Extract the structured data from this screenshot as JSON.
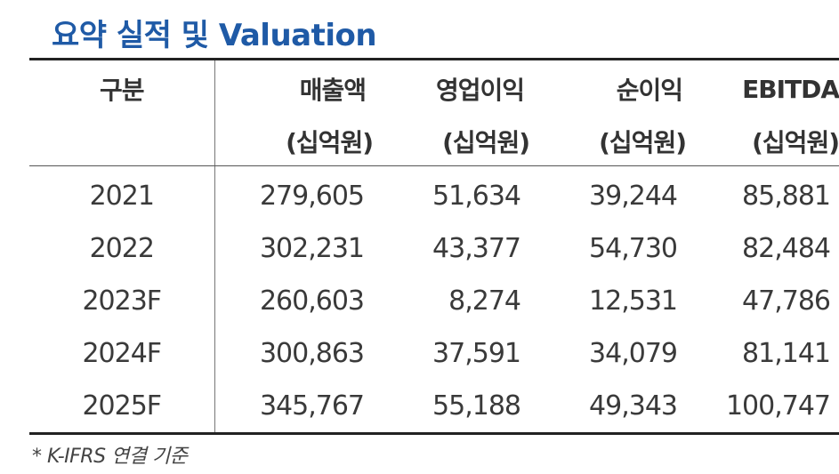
{
  "title": "요약 실적 및 Valuation",
  "table": {
    "headers": [
      {
        "label": "구분",
        "unit": ""
      },
      {
        "label": "매출액",
        "unit": "(십억원)"
      },
      {
        "label": "영업이익",
        "unit": "(십억원)"
      },
      {
        "label": "순이익",
        "unit": "(십억원)"
      },
      {
        "label": "EBITDA",
        "unit": "(십억원)"
      }
    ],
    "rows": [
      {
        "year": "2021",
        "revenue": "279,605",
        "operating_profit": "51,634",
        "net_income": "39,244",
        "ebitda": "85,881"
      },
      {
        "year": "2022",
        "revenue": "302,231",
        "operating_profit": "43,377",
        "net_income": "54,730",
        "ebitda": "82,484"
      },
      {
        "year": "2023F",
        "revenue": "260,603",
        "operating_profit": "8,274",
        "net_income": "12,531",
        "ebitda": "47,786"
      },
      {
        "year": "2024F",
        "revenue": "300,863",
        "operating_profit": "37,591",
        "net_income": "34,079",
        "ebitda": "81,141"
      },
      {
        "year": "2025F",
        "revenue": "345,767",
        "operating_profit": "55,188",
        "net_income": "49,343",
        "ebitda": "100,747"
      }
    ]
  },
  "footnote": "* K-IFRS 연결 기준",
  "colors": {
    "title": "#1f5aa6",
    "text": "#3a3a3a",
    "rule": "#222222"
  }
}
